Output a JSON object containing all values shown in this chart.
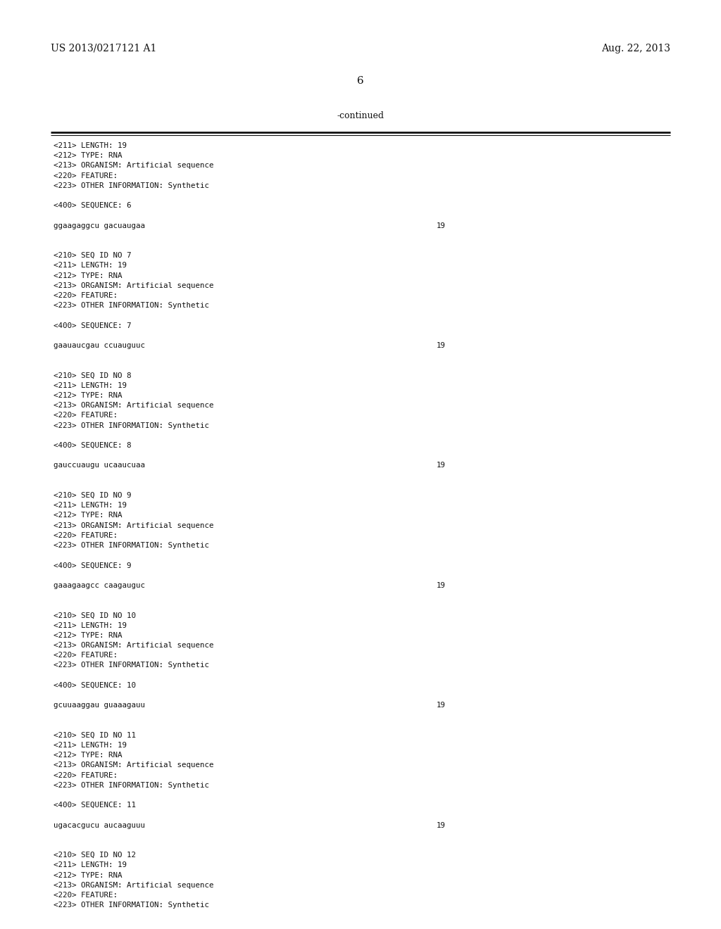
{
  "background_color": "#ffffff",
  "header_left": "US 2013/0217121 A1",
  "header_right": "Aug. 22, 2013",
  "page_number": "6",
  "continued_label": "-continued",
  "content_lines": [
    {
      "text": "<211> LENGTH: 19",
      "seq_num": null
    },
    {
      "text": "<212> TYPE: RNA",
      "seq_num": null
    },
    {
      "text": "<213> ORGANISM: Artificial sequence",
      "seq_num": null
    },
    {
      "text": "<220> FEATURE:",
      "seq_num": null
    },
    {
      "text": "<223> OTHER INFORMATION: Synthetic",
      "seq_num": null
    },
    {
      "text": "",
      "seq_num": null
    },
    {
      "text": "<400> SEQUENCE: 6",
      "seq_num": null
    },
    {
      "text": "",
      "seq_num": null
    },
    {
      "text": "ggaagaggcu gacuaugaa",
      "seq_num": "19"
    },
    {
      "text": "",
      "seq_num": null
    },
    {
      "text": "",
      "seq_num": null
    },
    {
      "text": "<210> SEQ ID NO 7",
      "seq_num": null
    },
    {
      "text": "<211> LENGTH: 19",
      "seq_num": null
    },
    {
      "text": "<212> TYPE: RNA",
      "seq_num": null
    },
    {
      "text": "<213> ORGANISM: Artificial sequence",
      "seq_num": null
    },
    {
      "text": "<220> FEATURE:",
      "seq_num": null
    },
    {
      "text": "<223> OTHER INFORMATION: Synthetic",
      "seq_num": null
    },
    {
      "text": "",
      "seq_num": null
    },
    {
      "text": "<400> SEQUENCE: 7",
      "seq_num": null
    },
    {
      "text": "",
      "seq_num": null
    },
    {
      "text": "gaauaucgau ccuauguuc",
      "seq_num": "19"
    },
    {
      "text": "",
      "seq_num": null
    },
    {
      "text": "",
      "seq_num": null
    },
    {
      "text": "<210> SEQ ID NO 8",
      "seq_num": null
    },
    {
      "text": "<211> LENGTH: 19",
      "seq_num": null
    },
    {
      "text": "<212> TYPE: RNA",
      "seq_num": null
    },
    {
      "text": "<213> ORGANISM: Artificial sequence",
      "seq_num": null
    },
    {
      "text": "<220> FEATURE:",
      "seq_num": null
    },
    {
      "text": "<223> OTHER INFORMATION: Synthetic",
      "seq_num": null
    },
    {
      "text": "",
      "seq_num": null
    },
    {
      "text": "<400> SEQUENCE: 8",
      "seq_num": null
    },
    {
      "text": "",
      "seq_num": null
    },
    {
      "text": "gauccuaugu ucaaucuaa",
      "seq_num": "19"
    },
    {
      "text": "",
      "seq_num": null
    },
    {
      "text": "",
      "seq_num": null
    },
    {
      "text": "<210> SEQ ID NO 9",
      "seq_num": null
    },
    {
      "text": "<211> LENGTH: 19",
      "seq_num": null
    },
    {
      "text": "<212> TYPE: RNA",
      "seq_num": null
    },
    {
      "text": "<213> ORGANISM: Artificial sequence",
      "seq_num": null
    },
    {
      "text": "<220> FEATURE:",
      "seq_num": null
    },
    {
      "text": "<223> OTHER INFORMATION: Synthetic",
      "seq_num": null
    },
    {
      "text": "",
      "seq_num": null
    },
    {
      "text": "<400> SEQUENCE: 9",
      "seq_num": null
    },
    {
      "text": "",
      "seq_num": null
    },
    {
      "text": "gaaagaagcc caagauguc",
      "seq_num": "19"
    },
    {
      "text": "",
      "seq_num": null
    },
    {
      "text": "",
      "seq_num": null
    },
    {
      "text": "<210> SEQ ID NO 10",
      "seq_num": null
    },
    {
      "text": "<211> LENGTH: 19",
      "seq_num": null
    },
    {
      "text": "<212> TYPE: RNA",
      "seq_num": null
    },
    {
      "text": "<213> ORGANISM: Artificial sequence",
      "seq_num": null
    },
    {
      "text": "<220> FEATURE:",
      "seq_num": null
    },
    {
      "text": "<223> OTHER INFORMATION: Synthetic",
      "seq_num": null
    },
    {
      "text": "",
      "seq_num": null
    },
    {
      "text": "<400> SEQUENCE: 10",
      "seq_num": null
    },
    {
      "text": "",
      "seq_num": null
    },
    {
      "text": "gcuuaaggau guaaagauu",
      "seq_num": "19"
    },
    {
      "text": "",
      "seq_num": null
    },
    {
      "text": "",
      "seq_num": null
    },
    {
      "text": "<210> SEQ ID NO 11",
      "seq_num": null
    },
    {
      "text": "<211> LENGTH: 19",
      "seq_num": null
    },
    {
      "text": "<212> TYPE: RNA",
      "seq_num": null
    },
    {
      "text": "<213> ORGANISM: Artificial sequence",
      "seq_num": null
    },
    {
      "text": "<220> FEATURE:",
      "seq_num": null
    },
    {
      "text": "<223> OTHER INFORMATION: Synthetic",
      "seq_num": null
    },
    {
      "text": "",
      "seq_num": null
    },
    {
      "text": "<400> SEQUENCE: 11",
      "seq_num": null
    },
    {
      "text": "",
      "seq_num": null
    },
    {
      "text": "ugacacgucu aucaaguuu",
      "seq_num": "19"
    },
    {
      "text": "",
      "seq_num": null
    },
    {
      "text": "",
      "seq_num": null
    },
    {
      "text": "<210> SEQ ID NO 12",
      "seq_num": null
    },
    {
      "text": "<211> LENGTH: 19",
      "seq_num": null
    },
    {
      "text": "<212> TYPE: RNA",
      "seq_num": null
    },
    {
      "text": "<213> ORGANISM: Artificial sequence",
      "seq_num": null
    },
    {
      "text": "<220> FEATURE:",
      "seq_num": null
    },
    {
      "text": "<223> OTHER INFORMATION: Synthetic",
      "seq_num": null
    }
  ]
}
